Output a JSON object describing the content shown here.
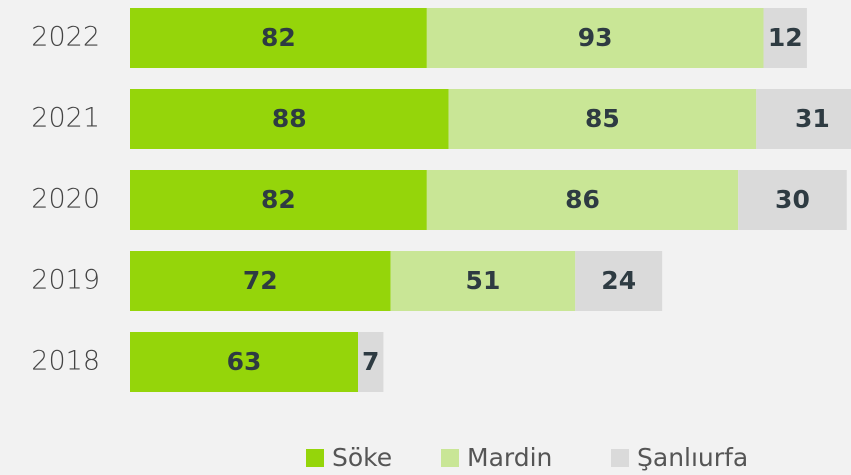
{
  "chart_data": {
    "type": "stacked-bar-horizontal",
    "categories": [
      "2022",
      "2021",
      "2020",
      "2019",
      "2018"
    ],
    "series": [
      {
        "name": "Söke",
        "color": "#95d50a",
        "values": [
          82,
          88,
          82,
          72,
          63
        ]
      },
      {
        "name": "Mardin",
        "color": "#c9e696",
        "values": [
          93,
          85,
          86,
          51,
          null
        ]
      },
      {
        "name": "Şanlıurfa",
        "color": "#dadada",
        "values": [
          12,
          31,
          30,
          24,
          7
        ]
      }
    ],
    "legend": "bottom-right"
  }
}
